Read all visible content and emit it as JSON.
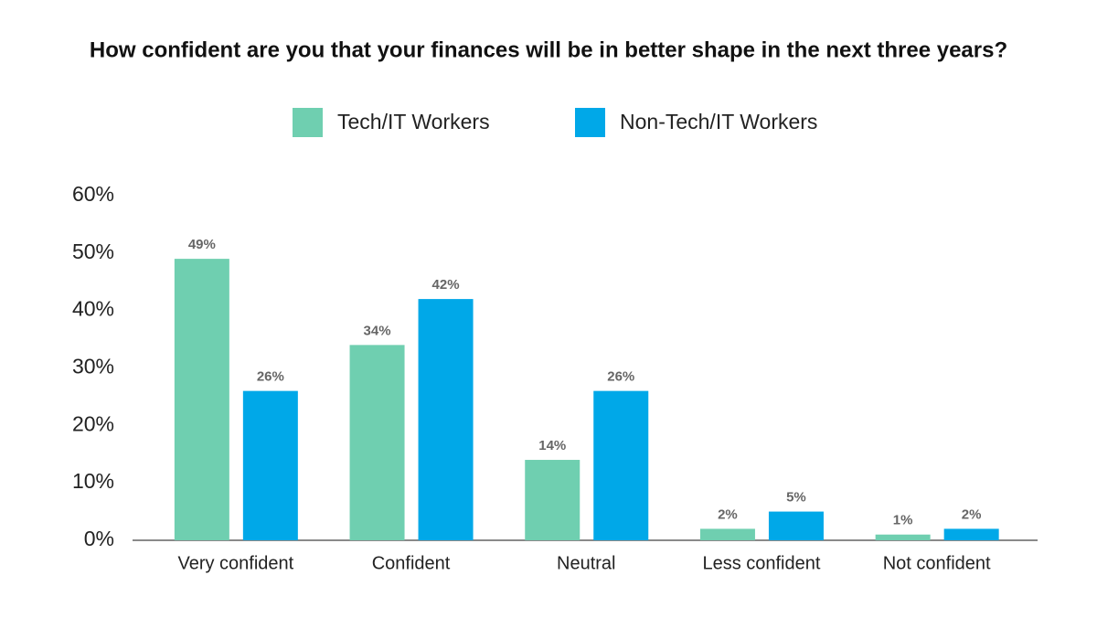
{
  "chart_data": {
    "type": "bar",
    "title": "How confident are you that your finances will be in better shape in the next three years?",
    "categories": [
      "Very confident",
      "Confident",
      "Neutral",
      "Less confident",
      "Not confident"
    ],
    "series": [
      {
        "name": "Tech/IT Workers",
        "color": "#6fcfb0",
        "values": [
          49,
          34,
          14,
          2,
          1
        ],
        "value_labels": [
          "49%",
          "34%",
          "14%",
          "2%",
          "1%"
        ]
      },
      {
        "name": "Non-Tech/IT Workers",
        "color": "#00a8e8",
        "values": [
          26,
          42,
          26,
          5,
          2
        ],
        "value_labels": [
          "26%",
          "42%",
          "26%",
          "5%",
          "2%"
        ]
      }
    ],
    "ylim": [
      0,
      60
    ],
    "yticks": [
      {
        "value": 0,
        "label": "0%"
      },
      {
        "value": 10,
        "label": "10%"
      },
      {
        "value": 20,
        "label": "20%"
      },
      {
        "value": 30,
        "label": "30%"
      },
      {
        "value": 40,
        "label": "40%"
      },
      {
        "value": 50,
        "label": "50%"
      },
      {
        "value": 60,
        "label": "60%"
      }
    ],
    "grid": false,
    "legend": "top"
  }
}
